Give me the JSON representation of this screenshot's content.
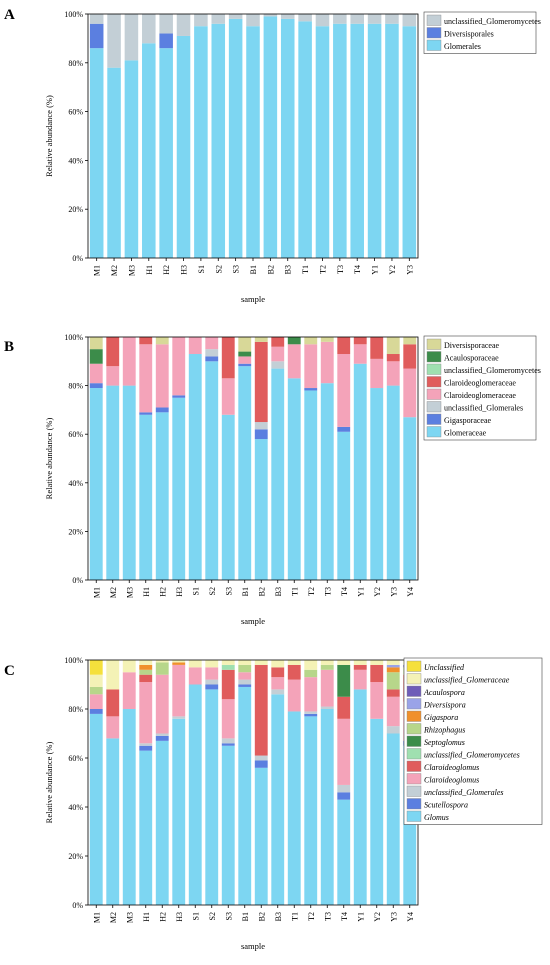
{
  "figure": {
    "panel_labels": [
      "A",
      "B",
      "C"
    ]
  },
  "chart_data": [
    {
      "type": "bar",
      "stacked": true,
      "panel": "A",
      "xlabel": "sample",
      "ylabel": "Relative abundance (%)",
      "ylim": [
        0,
        100
      ],
      "yticks": [
        "0%",
        "20%",
        "40%",
        "60%",
        "80%",
        "100%"
      ],
      "legend_position": "top-right",
      "categories": [
        "M1",
        "M2",
        "M3",
        "H1",
        "H2",
        "H3",
        "S1",
        "S2",
        "S3",
        "B1",
        "B2",
        "B3",
        "T1",
        "T2",
        "T3",
        "T4",
        "Y1",
        "Y2",
        "Y3"
      ],
      "series": [
        {
          "name": "Glomerales",
          "color": "#7dd6f2",
          "values": [
            86,
            78,
            81,
            88,
            86,
            91,
            95,
            96,
            98,
            95,
            99,
            98,
            97,
            95,
            96,
            96,
            96,
            96,
            95
          ]
        },
        {
          "name": "Diversisporales",
          "color": "#5b7fe0",
          "values": [
            10,
            0,
            0,
            0,
            6,
            0,
            0,
            0,
            0,
            0,
            0,
            0,
            0,
            0,
            0,
            0,
            0,
            0,
            0
          ]
        },
        {
          "name": "unclassified_Glomeromycetes",
          "color": "#c3cfd6",
          "values": [
            4,
            22,
            19,
            12,
            8,
            9,
            5,
            4,
            2,
            5,
            1,
            2,
            3,
            5,
            4,
            4,
            4,
            4,
            5
          ]
        }
      ]
    },
    {
      "type": "bar",
      "stacked": true,
      "panel": "B",
      "xlabel": "sample",
      "ylabel": "Relative abundance (%)",
      "ylim": [
        0,
        100
      ],
      "yticks": [
        "0%",
        "20%",
        "40%",
        "60%",
        "80%",
        "100%"
      ],
      "legend_position": "top-right",
      "categories": [
        "M1",
        "M2",
        "M3",
        "H1",
        "H2",
        "H3",
        "S1",
        "S2",
        "S3",
        "B1",
        "B2",
        "B3",
        "T1",
        "T2",
        "T3",
        "T4",
        "Y1",
        "Y2",
        "Y3",
        "Y4"
      ],
      "series": [
        {
          "name": "Glomeraceae",
          "color": "#7dd6f2",
          "values": [
            79,
            80,
            80,
            68,
            69,
            75,
            93,
            90,
            68,
            88,
            58,
            87,
            83,
            78,
            81,
            61,
            89,
            79,
            80,
            67
          ]
        },
        {
          "name": "Gigasporaceae",
          "color": "#5b7fe0",
          "values": [
            2,
            0,
            0,
            1,
            2,
            1,
            0,
            2,
            0,
            1,
            4,
            0,
            0,
            1,
            0,
            2,
            0,
            0,
            0,
            0
          ]
        },
        {
          "name": "unclassified_Glomerales",
          "color": "#c3cfd6",
          "values": [
            0,
            0,
            0,
            0,
            0,
            0,
            0,
            3,
            0,
            0,
            3,
            3,
            0,
            0,
            0,
            0,
            0,
            0,
            0,
            0
          ]
        },
        {
          "name": "Claroideoglomeraceae",
          "color": "#f4a3b9",
          "values": [
            8,
            8,
            20,
            28,
            26,
            24,
            7,
            5,
            15,
            3,
            0,
            6,
            14,
            18,
            17,
            30,
            8,
            12,
            10,
            20
          ]
        },
        {
          "name": "Claroideoglomeraceae",
          "color": "#e05c5c",
          "values": [
            0,
            12,
            0,
            3,
            0,
            0,
            0,
            0,
            17,
            0,
            33,
            4,
            0,
            0,
            0,
            7,
            3,
            9,
            3,
            10
          ]
        },
        {
          "name": "unclassified_Glomeromycetes",
          "color": "#9fe0b0",
          "values": [
            0,
            0,
            0,
            0,
            0,
            0,
            0,
            0,
            0,
            0,
            0,
            0,
            0,
            0,
            0,
            0,
            0,
            0,
            0,
            0
          ]
        },
        {
          "name": "Acaulosporaceae",
          "color": "#3c8c4a",
          "values": [
            6,
            0,
            0,
            0,
            0,
            0,
            0,
            0,
            0,
            2,
            0,
            0,
            3,
            0,
            0,
            0,
            0,
            0,
            0,
            0
          ]
        },
        {
          "name": "Diversisporaceae",
          "color": "#d8d898",
          "values": [
            5,
            0,
            0,
            0,
            3,
            0,
            0,
            0,
            0,
            6,
            2,
            0,
            0,
            3,
            2,
            0,
            0,
            0,
            7,
            3
          ]
        }
      ]
    },
    {
      "type": "bar",
      "stacked": true,
      "panel": "C",
      "xlabel": "sample",
      "ylabel": "Relative abundance (%)",
      "ylim": [
        0,
        100
      ],
      "yticks": [
        "0%",
        "20%",
        "40%",
        "60%",
        "80%",
        "100%"
      ],
      "legend_position": "top-right",
      "categories": [
        "M1",
        "M2",
        "M3",
        "H1",
        "H2",
        "H3",
        "S1",
        "S2",
        "S3",
        "B1",
        "B2",
        "B3",
        "T1",
        "T2",
        "T3",
        "T4",
        "Y1",
        "Y2",
        "Y3",
        "Y4"
      ],
      "series": [
        {
          "name": "Glomus",
          "color": "#7dd6f2",
          "values": [
            78,
            68,
            80,
            63,
            67,
            76,
            90,
            88,
            65,
            89,
            56,
            86,
            79,
            77,
            80,
            43,
            88,
            76,
            70,
            65
          ]
        },
        {
          "name": "Scutellospora",
          "color": "#5b7fe0",
          "values": [
            2,
            0,
            0,
            2,
            2,
            0,
            0,
            2,
            1,
            1,
            3,
            0,
            0,
            1,
            0,
            3,
            0,
            0,
            0,
            2
          ]
        },
        {
          "name": "unclassified_Glomerales",
          "color": "#c3cfd6",
          "values": [
            0,
            0,
            0,
            1,
            1,
            1,
            0,
            2,
            2,
            2,
            2,
            2,
            0,
            1,
            1,
            3,
            0,
            0,
            3,
            0
          ]
        },
        {
          "name": "Claroideoglomus",
          "color": "#f4a3b9",
          "values": [
            6,
            9,
            15,
            25,
            24,
            21,
            7,
            5,
            16,
            3,
            0,
            5,
            13,
            14,
            15,
            27,
            8,
            15,
            12,
            16
          ]
        },
        {
          "name": "Claroideoglomus",
          "color": "#e05c5c",
          "values": [
            0,
            11,
            0,
            3,
            0,
            0,
            0,
            0,
            12,
            0,
            37,
            4,
            6,
            0,
            0,
            9,
            2,
            7,
            3,
            11
          ]
        },
        {
          "name": "unclassified_Glomeromycetes",
          "color": "#9fe0b0",
          "values": [
            0,
            0,
            0,
            0,
            0,
            0,
            0,
            0,
            2,
            0,
            0,
            0,
            0,
            0,
            0,
            0,
            0,
            0,
            0,
            0
          ]
        },
        {
          "name": "Septoglomus",
          "color": "#3c8c4a",
          "values": [
            0,
            0,
            0,
            0,
            0,
            0,
            0,
            0,
            0,
            0,
            0,
            0,
            0,
            0,
            0,
            13,
            0,
            0,
            0,
            0
          ]
        },
        {
          "name": "Rhizophagus",
          "color": "#b7d68a",
          "values": [
            3,
            0,
            0,
            2,
            5,
            0,
            0,
            0,
            0,
            3,
            0,
            0,
            0,
            3,
            2,
            0,
            0,
            0,
            7,
            3
          ]
        },
        {
          "name": "Gigaspora",
          "color": "#f0902c",
          "values": [
            0,
            0,
            0,
            2,
            0,
            1,
            0,
            0,
            0,
            0,
            0,
            0,
            0,
            0,
            0,
            0,
            0,
            0,
            2,
            0
          ]
        },
        {
          "name": "Diversispora",
          "color": "#9aa3e8",
          "values": [
            0,
            0,
            0,
            0,
            0,
            0,
            0,
            0,
            0,
            0,
            0,
            0,
            0,
            0,
            0,
            0,
            0,
            0,
            1,
            0
          ]
        },
        {
          "name": "Acaulospora",
          "color": "#6e5db8",
          "values": [
            0,
            0,
            0,
            0,
            0,
            0,
            0,
            0,
            0,
            0,
            0,
            0,
            0,
            0,
            0,
            0,
            0,
            0,
            0,
            1
          ]
        },
        {
          "name": "unclassified_Glomeraceae",
          "color": "#f4f2b6",
          "values": [
            5,
            12,
            5,
            2,
            1,
            1,
            3,
            3,
            2,
            2,
            2,
            3,
            2,
            4,
            2,
            2,
            2,
            2,
            2,
            2
          ]
        },
        {
          "name": "Unclassified",
          "color": "#f5e03c",
          "values": [
            6,
            0,
            0,
            0,
            0,
            0,
            0,
            0,
            0,
            0,
            0,
            0,
            0,
            0,
            0,
            0,
            0,
            0,
            0,
            0
          ]
        }
      ]
    }
  ]
}
